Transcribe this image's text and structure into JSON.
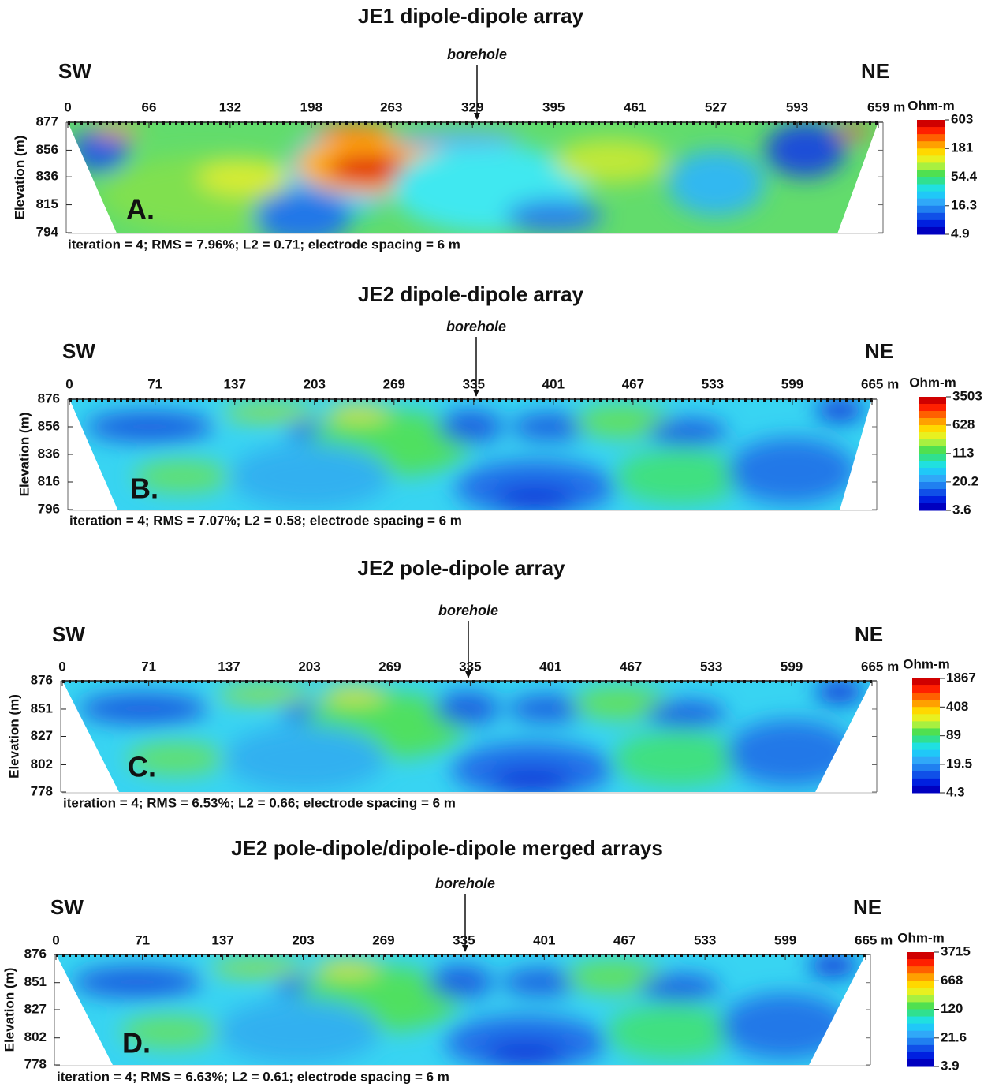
{
  "panels": [
    {
      "title": "JE1 dipole-dipole array",
      "borehole": "borehole",
      "left": "SW",
      "right": "NE",
      "letter": "A.",
      "y_label": "Elevation (m)",
      "xlim": [
        0,
        659
      ],
      "xticks": [
        0,
        66,
        132,
        198,
        263,
        329,
        395,
        461,
        527,
        593,
        {
          "value": 659,
          "label": "659 m"
        }
      ],
      "ylim": [
        794,
        877
      ],
      "yticks": [
        877,
        856,
        836,
        815,
        794
      ],
      "colorbar": {
        "title": "Ohm-m",
        "scale": "log",
        "ticks": [
          603,
          181,
          54.4,
          16.3,
          4.9
        ]
      },
      "stats": "iteration = 4; RMS = 7.96%; L2 = 0.71; electrode spacing = 6 m"
    },
    {
      "title": "JE2 dipole-dipole array",
      "borehole": "borehole",
      "left": "SW",
      "right": "NE",
      "letter": "B.",
      "y_label": "Elevation (m)",
      "xlim": [
        0,
        665
      ],
      "xticks": [
        0,
        71,
        137,
        203,
        269,
        335,
        401,
        467,
        533,
        599,
        {
          "value": 665,
          "label": "665 m"
        }
      ],
      "ylim": [
        796,
        876
      ],
      "yticks": [
        876,
        856,
        836,
        816,
        796
      ],
      "colorbar": {
        "title": "Ohm-m",
        "scale": "log",
        "ticks": [
          3503,
          628,
          113,
          20.2,
          3.6
        ]
      },
      "stats": "iteration = 4; RMS = 7.07%; L2 = 0.58; electrode spacing = 6 m"
    },
    {
      "title": "JE2 pole-dipole array",
      "borehole": "borehole",
      "left": "SW",
      "right": "NE",
      "letter": "C.",
      "y_label": "Elevation (m)",
      "xlim": [
        0,
        665
      ],
      "xticks": [
        0,
        71,
        137,
        203,
        269,
        335,
        401,
        467,
        533,
        599,
        {
          "value": 665,
          "label": "665 m"
        }
      ],
      "ylim": [
        778,
        876
      ],
      "yticks": [
        876,
        851,
        827,
        802,
        778
      ],
      "colorbar": {
        "title": "Ohm-m",
        "scale": "log",
        "ticks": [
          1867,
          408,
          89,
          19.5,
          4.3
        ]
      },
      "stats": "iteration = 4; RMS = 6.53%; L2 = 0.66; electrode spacing = 6 m"
    },
    {
      "title": "JE2 pole-dipole/dipole-dipole merged arrays",
      "borehole": "borehole",
      "left": "SW",
      "right": "NE",
      "letter": "D.",
      "y_label": "Elevation (m)",
      "xlim": [
        0,
        665
      ],
      "xticks": [
        0,
        71,
        137,
        203,
        269,
        335,
        401,
        467,
        533,
        599,
        {
          "value": 665,
          "label": "665 m"
        }
      ],
      "ylim": [
        778,
        876
      ],
      "yticks": [
        876,
        851,
        827,
        802,
        778
      ],
      "colorbar": {
        "title": "Ohm-m",
        "scale": "log",
        "ticks": [
          3715,
          668,
          120,
          21.6,
          3.9
        ]
      },
      "stats": "iteration = 4; RMS = 6.63%; L2 = 0.61; electrode spacing = 6 m"
    }
  ]
}
